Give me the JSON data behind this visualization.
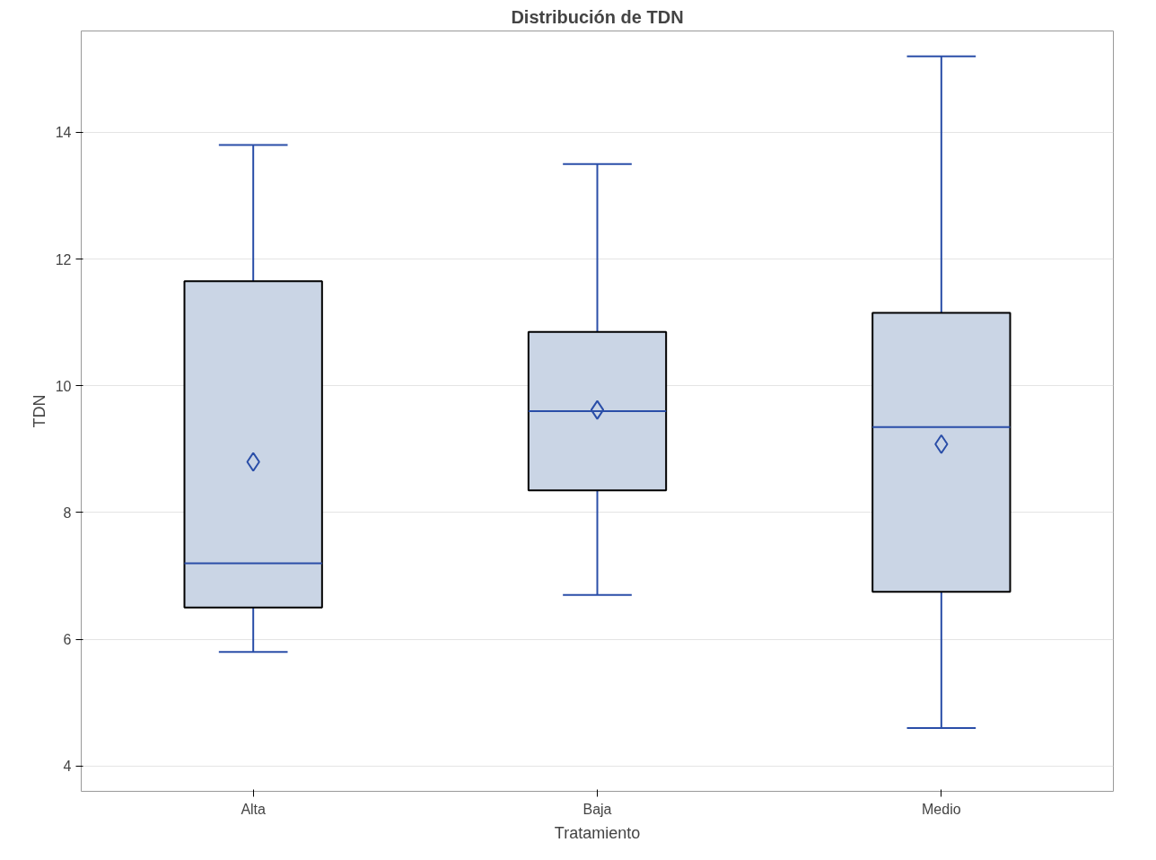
{
  "chart_data": {
    "type": "box",
    "title": "Distribución de TDN",
    "xlabel": "Tratamiento",
    "ylabel": "TDN",
    "categories": [
      "Alta",
      "Baja",
      "Medio"
    ],
    "boxes": [
      {
        "low": 5.8,
        "q1": 6.5,
        "median": 7.2,
        "q3": 11.65,
        "high": 13.8,
        "mean": 8.8
      },
      {
        "low": 6.7,
        "q1": 8.35,
        "median": 9.6,
        "q3": 10.85,
        "high": 13.5,
        "mean": 9.62
      },
      {
        "low": 4.6,
        "q1": 6.75,
        "median": 9.35,
        "q3": 11.15,
        "high": 15.2,
        "mean": 9.08
      }
    ],
    "color": "#cad5e5",
    "ylim": [
      3.6,
      15.6
    ],
    "yticks": [
      4,
      6,
      8,
      10,
      12,
      14
    ],
    "grid": "y",
    "marker": "diamond"
  }
}
